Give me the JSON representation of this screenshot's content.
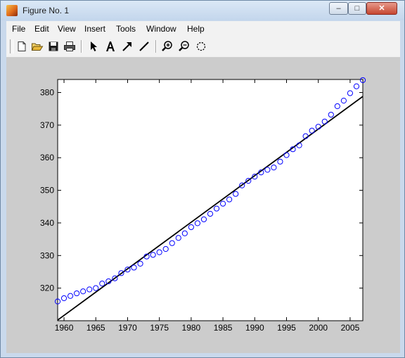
{
  "window": {
    "title": "Figure No. 1",
    "controls": {
      "minimize": "–",
      "maximize": "□",
      "close": "✕"
    }
  },
  "menu": {
    "items": [
      "File",
      "Edit",
      "View",
      "Insert",
      "Tools",
      "Window",
      "Help"
    ]
  },
  "toolbar": {
    "buttons": [
      "new-file-icon",
      "open-folder-icon",
      "save-icon",
      "print-icon",
      "select-arrow-icon",
      "insert-text-icon",
      "insert-arrow-icon",
      "insert-line-icon",
      "zoom-in-icon",
      "zoom-out-icon",
      "rotate-3d-icon"
    ]
  },
  "chart_data": {
    "type": "scatter",
    "title": "",
    "xlabel": "",
    "ylabel": "",
    "xlim": [
      1959,
      2007
    ],
    "ylim": [
      310,
      384
    ],
    "xticks": [
      1960,
      1965,
      1970,
      1975,
      1980,
      1985,
      1990,
      1995,
      2000,
      2005
    ],
    "yticks": [
      320,
      330,
      340,
      350,
      360,
      370,
      380
    ],
    "grid": false,
    "series": [
      {
        "style": "markers",
        "marker": "circle",
        "color": "#0000ff",
        "x": [
          1959,
          1960,
          1961,
          1962,
          1963,
          1964,
          1965,
          1966,
          1967,
          1968,
          1969,
          1970,
          1971,
          1972,
          1973,
          1974,
          1975,
          1976,
          1977,
          1978,
          1979,
          1980,
          1981,
          1982,
          1983,
          1984,
          1985,
          1986,
          1987,
          1988,
          1989,
          1990,
          1991,
          1992,
          1993,
          1994,
          1995,
          1996,
          1997,
          1998,
          1999,
          2000,
          2001,
          2002,
          2003,
          2004,
          2005,
          2006,
          2007
        ],
        "y": [
          315.9,
          316.9,
          317.6,
          318.4,
          319.0,
          319.6,
          320.0,
          321.4,
          322.1,
          323.0,
          324.6,
          325.7,
          326.3,
          327.5,
          329.7,
          330.2,
          331.0,
          332.0,
          333.8,
          335.4,
          336.8,
          338.7,
          339.9,
          341.1,
          342.8,
          344.4,
          345.9,
          347.2,
          348.9,
          351.5,
          352.9,
          354.2,
          355.5,
          356.3,
          357.0,
          358.8,
          360.8,
          362.6,
          363.8,
          366.6,
          368.3,
          369.5,
          371.1,
          373.2,
          375.8,
          377.5,
          379.8,
          381.9,
          383.8
        ]
      },
      {
        "style": "line",
        "color": "#000000",
        "x": [
          1959,
          2007
        ],
        "y": [
          310.2,
          378.8
        ]
      }
    ]
  }
}
